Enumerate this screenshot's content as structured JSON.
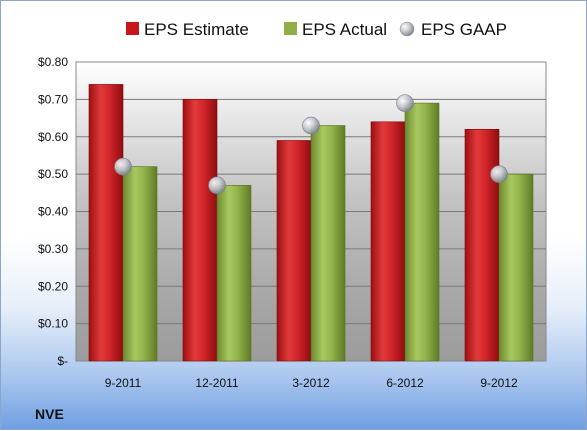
{
  "chart_data": {
    "type": "bar",
    "company": "NVE",
    "categories": [
      "9-2011",
      "12-2011",
      "3-2012",
      "6-2012",
      "9-2012"
    ],
    "series": [
      {
        "name": "EPS Estimate",
        "kind": "bar",
        "color": "#c8171b",
        "values": [
          0.74,
          0.7,
          0.59,
          0.64,
          0.62
        ]
      },
      {
        "name": "EPS Actual",
        "kind": "bar",
        "color": "#8eb047",
        "values": [
          0.52,
          0.47,
          0.63,
          0.69,
          0.5
        ]
      },
      {
        "name": "EPS GAAP",
        "kind": "marker",
        "color": "#b8bcc4",
        "values": [
          0.52,
          0.47,
          0.63,
          0.69,
          0.5
        ]
      }
    ],
    "yticks": [
      "$-",
      "$0.10",
      "$0.20",
      "$0.30",
      "$0.40",
      "$0.50",
      "$0.60",
      "$0.70",
      "$0.80"
    ],
    "ylim": [
      0,
      0.8
    ],
    "grid": true,
    "legend_position": "top"
  }
}
